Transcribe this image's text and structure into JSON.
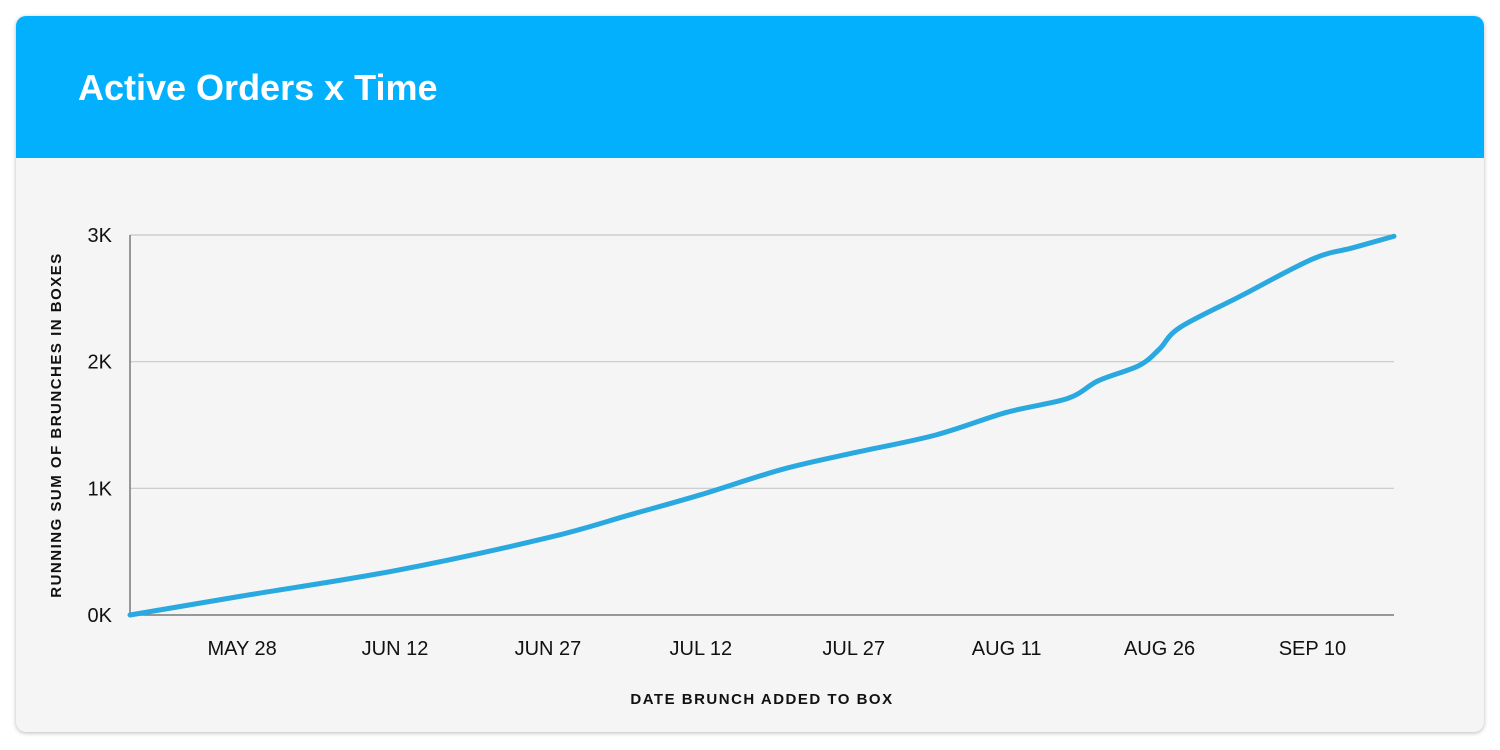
{
  "card": {
    "title": "Active Orders x Time"
  },
  "colors": {
    "header": "#03b0fd",
    "line": "#2aa9e0",
    "grid": "#c8c8c8",
    "axis": "#7a7a7a"
  },
  "chart_data": {
    "type": "line",
    "title": "Active Orders x Time",
    "xlabel": "DATE BRUNCH ADDED TO BOX",
    "ylabel": "RUNNING SUM OF BRUNCHES IN BOXES",
    "ylim": [
      0,
      3000
    ],
    "xlim": [
      "2019-05-17",
      "2019-09-18"
    ],
    "grid": true,
    "legend": "none",
    "x_ticks": [
      {
        "date": "2019-05-28",
        "label": "MAY 28"
      },
      {
        "date": "2019-06-12",
        "label": "JUN 12"
      },
      {
        "date": "2019-06-27",
        "label": "JUN 27"
      },
      {
        "date": "2019-07-12",
        "label": "JUL 12"
      },
      {
        "date": "2019-07-27",
        "label": "JUL 27"
      },
      {
        "date": "2019-08-11",
        "label": "AUG 11"
      },
      {
        "date": "2019-08-26",
        "label": "AUG 26"
      },
      {
        "date": "2019-09-10",
        "label": "SEP 10"
      }
    ],
    "y_ticks": [
      {
        "value": 0,
        "label": "0K"
      },
      {
        "value": 1000,
        "label": "1K"
      },
      {
        "value": 2000,
        "label": "2K"
      },
      {
        "value": 3000,
        "label": "3K"
      }
    ],
    "series": [
      {
        "x": [
          "2019-05-17",
          "2019-05-28",
          "2019-06-12",
          "2019-06-27",
          "2019-07-05",
          "2019-07-12",
          "2019-07-20",
          "2019-07-27",
          "2019-08-04",
          "2019-08-11",
          "2019-08-17",
          "2019-08-20",
          "2019-08-24",
          "2019-08-26",
          "2019-08-28",
          "2019-09-03",
          "2019-09-10",
          "2019-09-14",
          "2019-09-18"
        ],
        "y": [
          0,
          150,
          350,
          610,
          790,
          950,
          1150,
          1280,
          1420,
          1600,
          1710,
          1850,
          1970,
          2100,
          2270,
          2520,
          2810,
          2900,
          2990
        ]
      }
    ]
  }
}
